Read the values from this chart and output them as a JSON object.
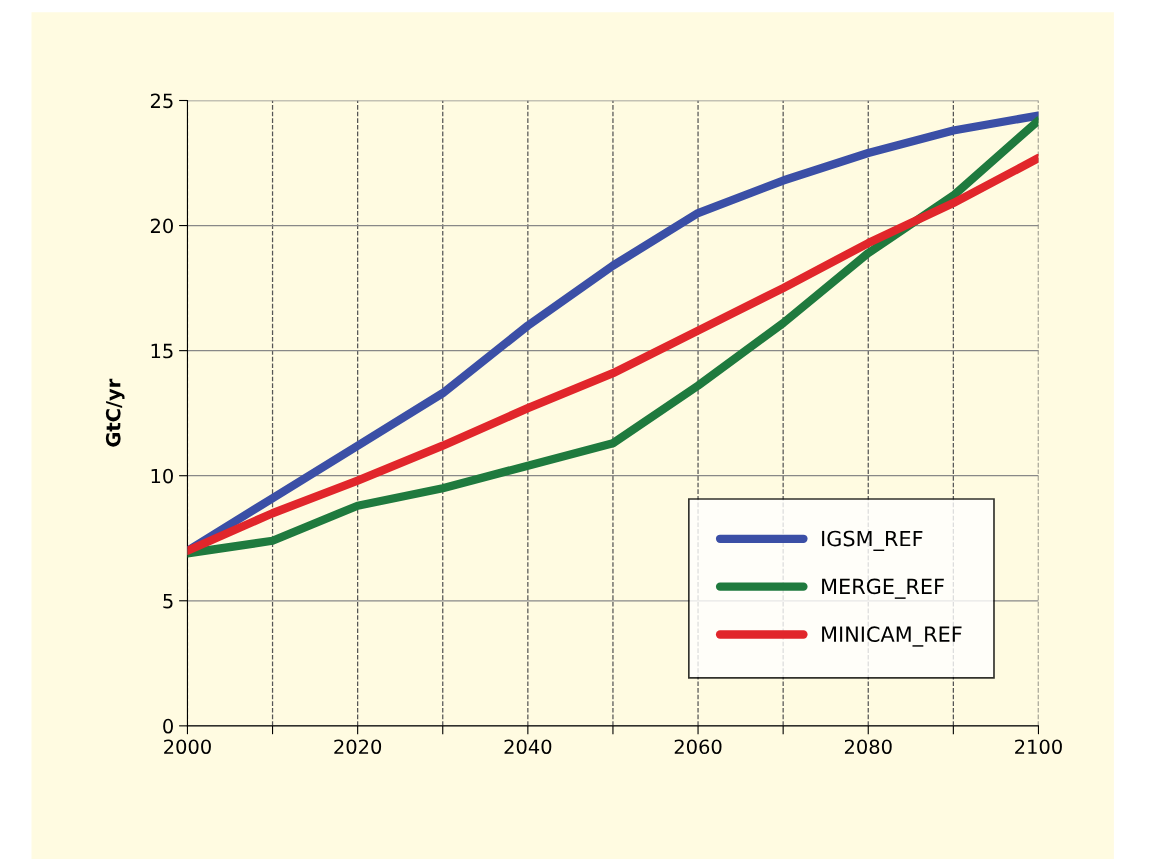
{
  "chart_data": {
    "type": "line",
    "ylabel": "GtC/yr",
    "x": [
      2000,
      2010,
      2020,
      2030,
      2040,
      2050,
      2060,
      2070,
      2080,
      2090,
      2100
    ],
    "series": [
      {
        "name": "IGSM_REF",
        "color": "#3b4fa6",
        "values": [
          7.0,
          9.1,
          11.2,
          13.3,
          16.0,
          18.4,
          20.5,
          21.8,
          22.9,
          23.8,
          24.4
        ]
      },
      {
        "name": "MERGE_REF",
        "color": "#1f7a3e",
        "values": [
          6.9,
          7.4,
          8.8,
          9.5,
          10.4,
          11.3,
          13.6,
          16.1,
          18.9,
          21.2,
          24.2
        ]
      },
      {
        "name": "MINICAM_REF",
        "color": "#e1262b",
        "values": [
          7.0,
          8.5,
          9.8,
          11.2,
          12.7,
          14.1,
          15.8,
          17.5,
          19.3,
          20.9,
          22.7
        ]
      }
    ],
    "xlim": [
      2000,
      2100
    ],
    "ylim": [
      0,
      25
    ],
    "xticks": [
      2000,
      {
        "value": 2010,
        "label": null
      },
      2020,
      {
        "value": 2030,
        "label": null
      },
      2040,
      {
        "value": 2050,
        "label": null
      },
      2060,
      {
        "value": 2070,
        "label": null
      },
      2080,
      {
        "value": 2090,
        "label": null
      },
      2100
    ],
    "yticks": [
      0,
      5,
      10,
      15,
      20,
      25
    ],
    "grid": true,
    "legend": "bottom right",
    "marker": "none",
    "line_style": "solid"
  }
}
